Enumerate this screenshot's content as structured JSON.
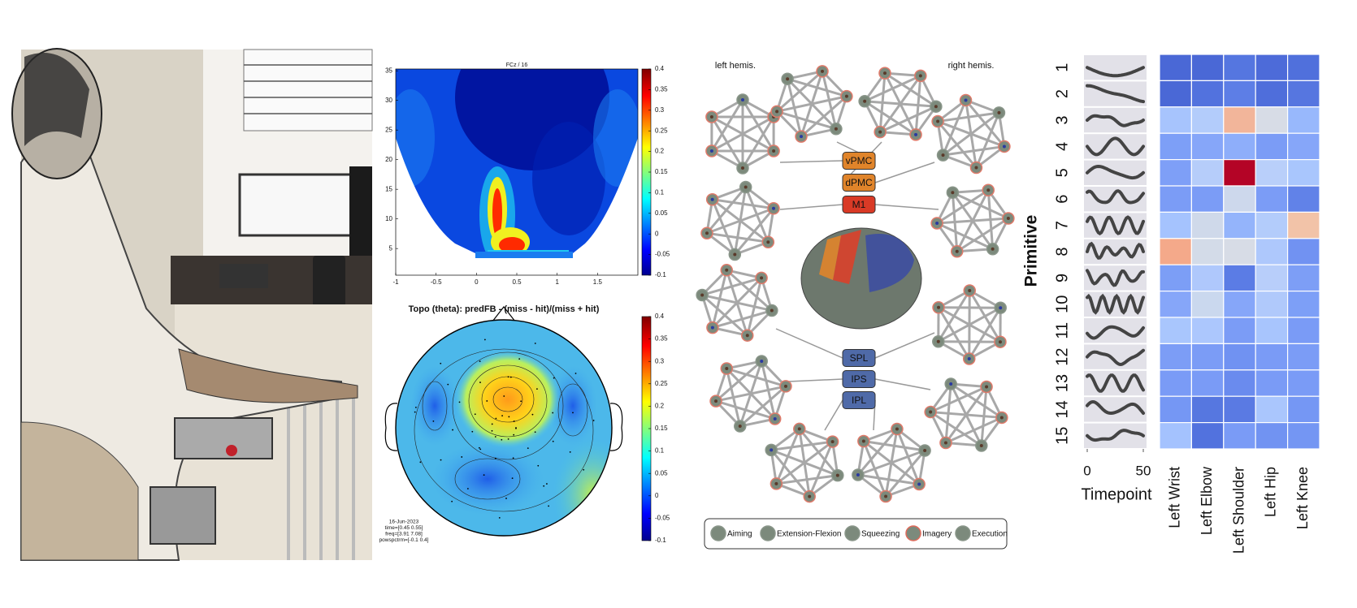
{
  "spectrogram": {
    "title": "FCz / 16",
    "xlim": [
      -1,
      2
    ],
    "ylim": [
      0.5,
      35.3
    ],
    "xticks": [
      -1,
      -0.5,
      0,
      0.5,
      1,
      1.5
    ],
    "yticks": [
      5,
      10,
      15,
      20,
      25,
      30,
      35
    ],
    "colorbar_lim": [
      -0.1,
      0.4
    ],
    "colorbar_ticks": [
      0.4,
      0.35,
      0.3,
      0.25,
      0.2,
      0.15,
      0.1,
      0.05,
      0,
      -0.05,
      -0.1
    ]
  },
  "topoplot": {
    "title": "Topo (theta): predFB - (miss - hit)/(miss + hit)",
    "colorbar_lim": [
      -0.1,
      0.4
    ],
    "colorbar_ticks": [
      0.4,
      0.35,
      0.3,
      0.25,
      0.2,
      0.15,
      0.1,
      0.05,
      0,
      -0.05,
      -0.1
    ],
    "notes": [
      "16-Jun-2023",
      "time=[0.45 0.55]",
      "freq=[3.91 7.08]",
      "powspctrm=[-0.1 0.4]"
    ]
  },
  "network": {
    "left_label": "left hemis.",
    "right_label": "right hemis.",
    "regions": [
      {
        "label": "vPMC",
        "color": "#e0842a"
      },
      {
        "label": "dPMC",
        "color": "#e0842a"
      },
      {
        "label": "M1",
        "color": "#d93a26"
      },
      {
        "label": "SPL",
        "color": "#4f6aa8"
      },
      {
        "label": "IPS",
        "color": "#4f6aa8"
      },
      {
        "label": "IPL",
        "color": "#4f6aa8"
      }
    ],
    "legend": [
      "Aiming",
      "Extension-Flexion",
      "Squeezing",
      "Imagery",
      "Execution"
    ]
  },
  "heatmap": {
    "y_label": "Primitive",
    "rows": [
      "1",
      "2",
      "3",
      "4",
      "5",
      "6",
      "7",
      "8",
      "9",
      "10",
      "11",
      "12",
      "13",
      "14",
      "15"
    ],
    "columns": [
      "Left Wrist",
      "Left Elbow",
      "Left Shoulder",
      "Left Hip",
      "Left Knee"
    ],
    "x_label": "Timepoint",
    "xticks": [
      0,
      50
    ],
    "cell_colors": [
      [
        "#4a68d6",
        "#4a68d6",
        "#5576e0",
        "#4d6bd9",
        "#5070dc"
      ],
      [
        "#4a68d6",
        "#5272de",
        "#5d7ee6",
        "#4f6edb",
        "#5676e0"
      ],
      [
        "#a7c4fd",
        "#b3ccfb",
        "#f2b59a",
        "#d7dce6",
        "#98b8fc"
      ],
      [
        "#7d9ff7",
        "#86a6f9",
        "#8eaefa",
        "#7b9cf6",
        "#86a6f9"
      ],
      [
        "#7e9ff7",
        "#b6cdfa",
        "#b40426",
        "#b9cffa",
        "#a9c6fd"
      ],
      [
        "#7b9cf6",
        "#7b9cf6",
        "#cdd8ec",
        "#7b9cf6",
        "#6182e8"
      ],
      [
        "#a5c3fe",
        "#cfd9ea",
        "#94b4fb",
        "#b3ccfb",
        "#f2c3a8"
      ],
      [
        "#f4a98a",
        "#d3dbe8",
        "#d7dce6",
        "#aec8fc",
        "#7192f2"
      ],
      [
        "#7c9ef6",
        "#afc8fc",
        "#5b7ce5",
        "#b8cefa",
        "#7d9ef6"
      ],
      [
        "#86a6f9",
        "#cad8ee",
        "#86a6f9",
        "#b0c9fb",
        "#7d9ff7"
      ],
      [
        "#a9c6fd",
        "#acc7fd",
        "#7b9cf6",
        "#a8c5fd",
        "#7a9bf6"
      ],
      [
        "#7c9df6",
        "#7b9cf6",
        "#7092f2",
        "#7a9bf6",
        "#7b9cf6"
      ],
      [
        "#7a9bf6",
        "#7a9bf6",
        "#6a8bee",
        "#7a9bf6",
        "#7a9bf6"
      ],
      [
        "#7597f4",
        "#5677e0",
        "#5a7ae3",
        "#aac6fd",
        "#7597f4"
      ],
      [
        "#a4c2fe",
        "#5272de",
        "#7a9bf6",
        "#7193f2",
        "#7496f3"
      ]
    ]
  }
}
